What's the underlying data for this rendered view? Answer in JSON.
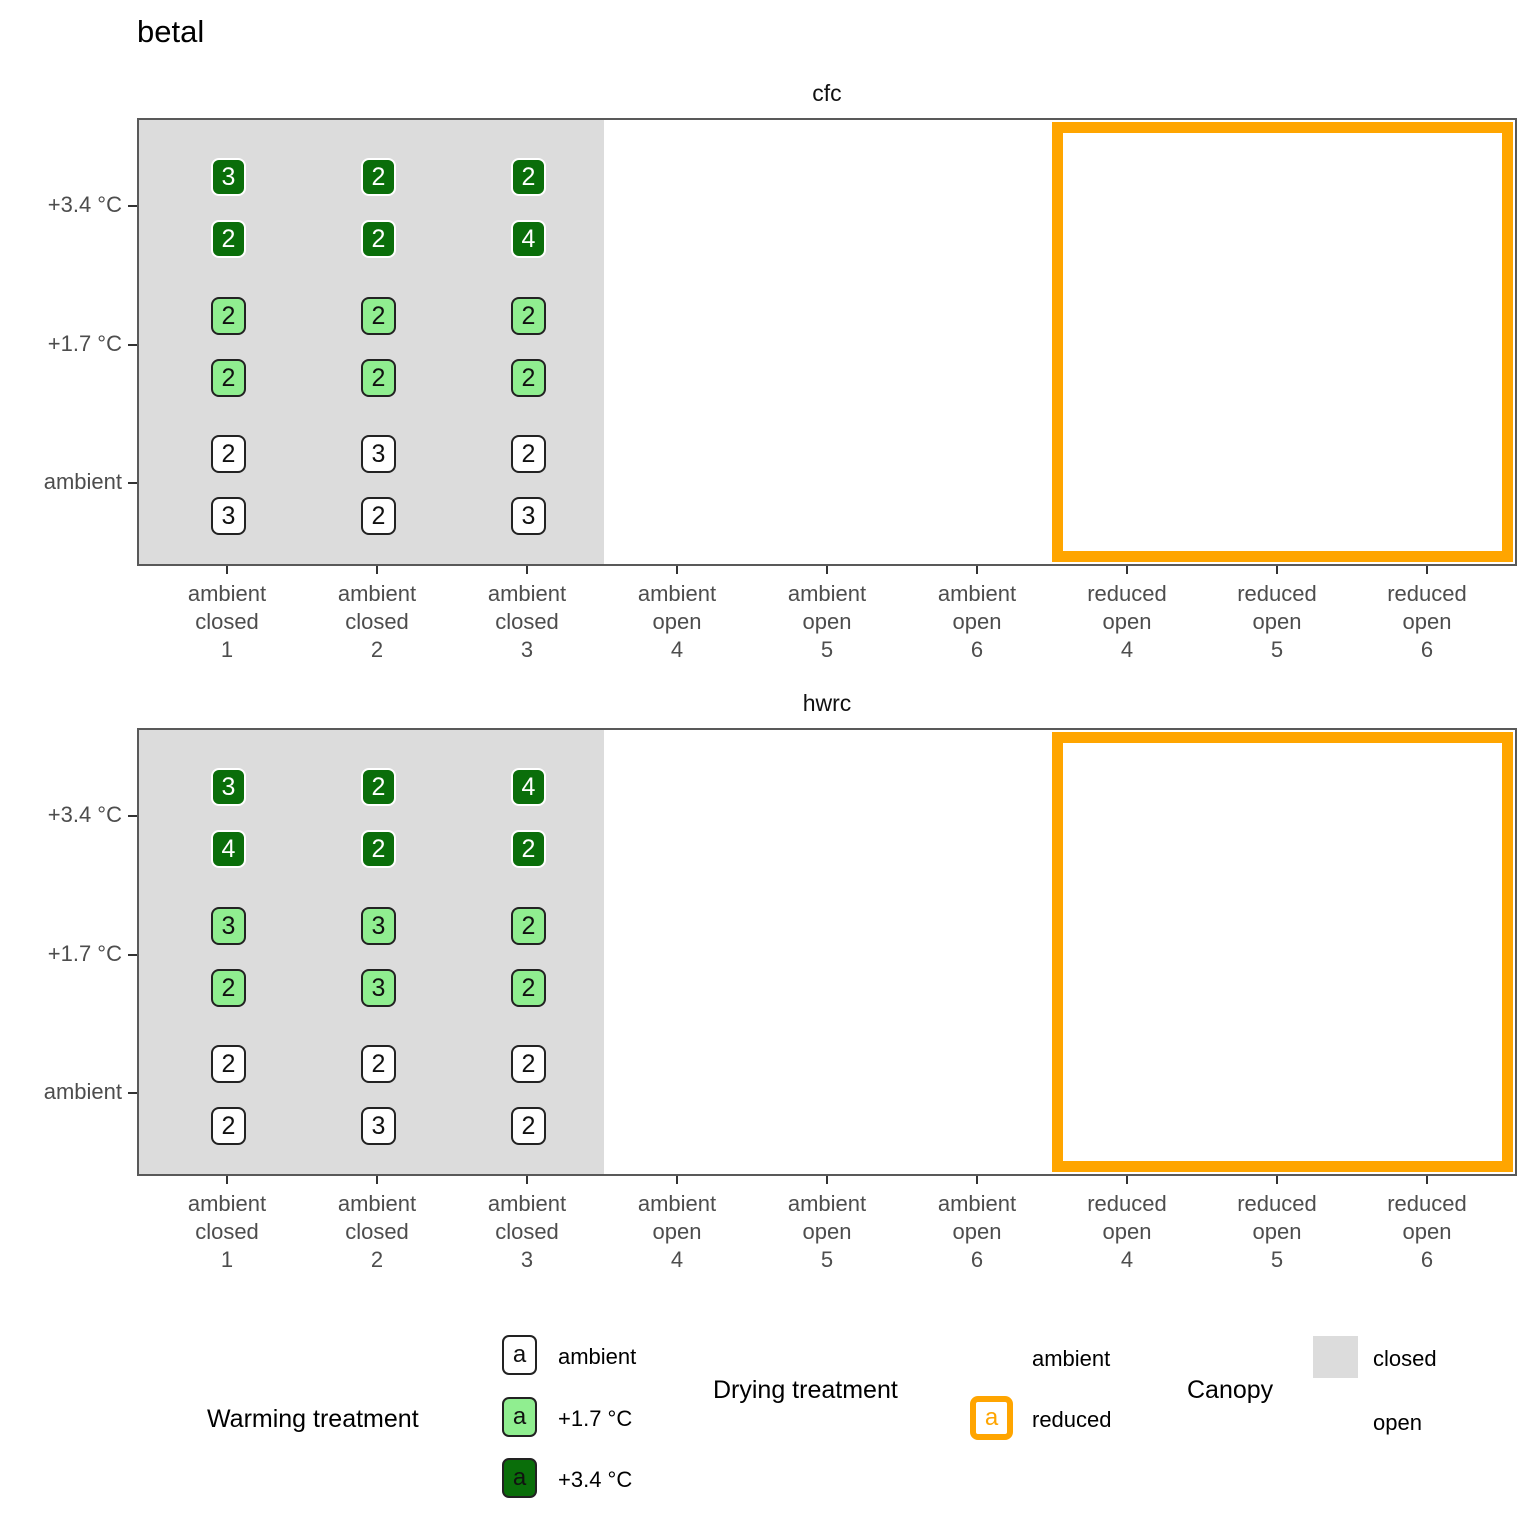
{
  "title": "betal",
  "colors": {
    "warming_ambient": "#FFFFFF",
    "warming_plus17": "#90EE90",
    "warming_plus34": "#0A6E0A",
    "drying_reduced_orange": "#FFA500",
    "canopy_closed_gray": "#DCDCDC"
  },
  "chart_data": {
    "type": "table",
    "title": "betal",
    "y_categories": [
      "+3.4 °C",
      "+1.7 °C",
      "ambient"
    ],
    "x_categories": [
      [
        "ambient",
        "closed",
        "1"
      ],
      [
        "ambient",
        "closed",
        "2"
      ],
      [
        "ambient",
        "closed",
        "3"
      ],
      [
        "ambient",
        "open",
        "4"
      ],
      [
        "ambient",
        "open",
        "5"
      ],
      [
        "ambient",
        "open",
        "6"
      ],
      [
        "reduced",
        "open",
        "4"
      ],
      [
        "reduced",
        "open",
        "5"
      ],
      [
        "reduced",
        "open",
        "6"
      ]
    ],
    "facets": [
      {
        "strip": "cfc",
        "counts": [
          [
            [
              3,
              2
            ],
            [
              2,
              2
            ],
            [
              2,
              4
            ]
          ],
          [
            [
              2,
              2
            ],
            [
              2,
              2
            ],
            [
              2,
              2
            ]
          ],
          [
            [
              2,
              3
            ],
            [
              3,
              2
            ],
            [
              2,
              3
            ]
          ]
        ]
      },
      {
        "strip": "hwrc",
        "counts": [
          [
            [
              3,
              4
            ],
            [
              2,
              2
            ],
            [
              4,
              2
            ]
          ],
          [
            [
              3,
              2
            ],
            [
              3,
              3
            ],
            [
              2,
              2
            ]
          ],
          [
            [
              2,
              2
            ],
            [
              2,
              3
            ],
            [
              2,
              2
            ]
          ]
        ]
      }
    ],
    "annotations": {
      "closed_shading_x_range": [
        "ambient closed 1",
        "ambient closed 3"
      ],
      "reduced_outline_x_range": [
        "reduced open 4",
        "reduced open 6"
      ],
      "legend_position": "bottom",
      "grid": "off"
    }
  },
  "legend": {
    "key_letter": "a",
    "warming": {
      "title": "Warming treatment",
      "items": [
        "ambient",
        "+1.7 °C",
        "+3.4 °C"
      ]
    },
    "drying": {
      "title": "Drying treatment",
      "items": [
        "ambient",
        "reduced"
      ]
    },
    "canopy": {
      "title": "Canopy",
      "items": [
        "closed",
        "open"
      ]
    }
  }
}
